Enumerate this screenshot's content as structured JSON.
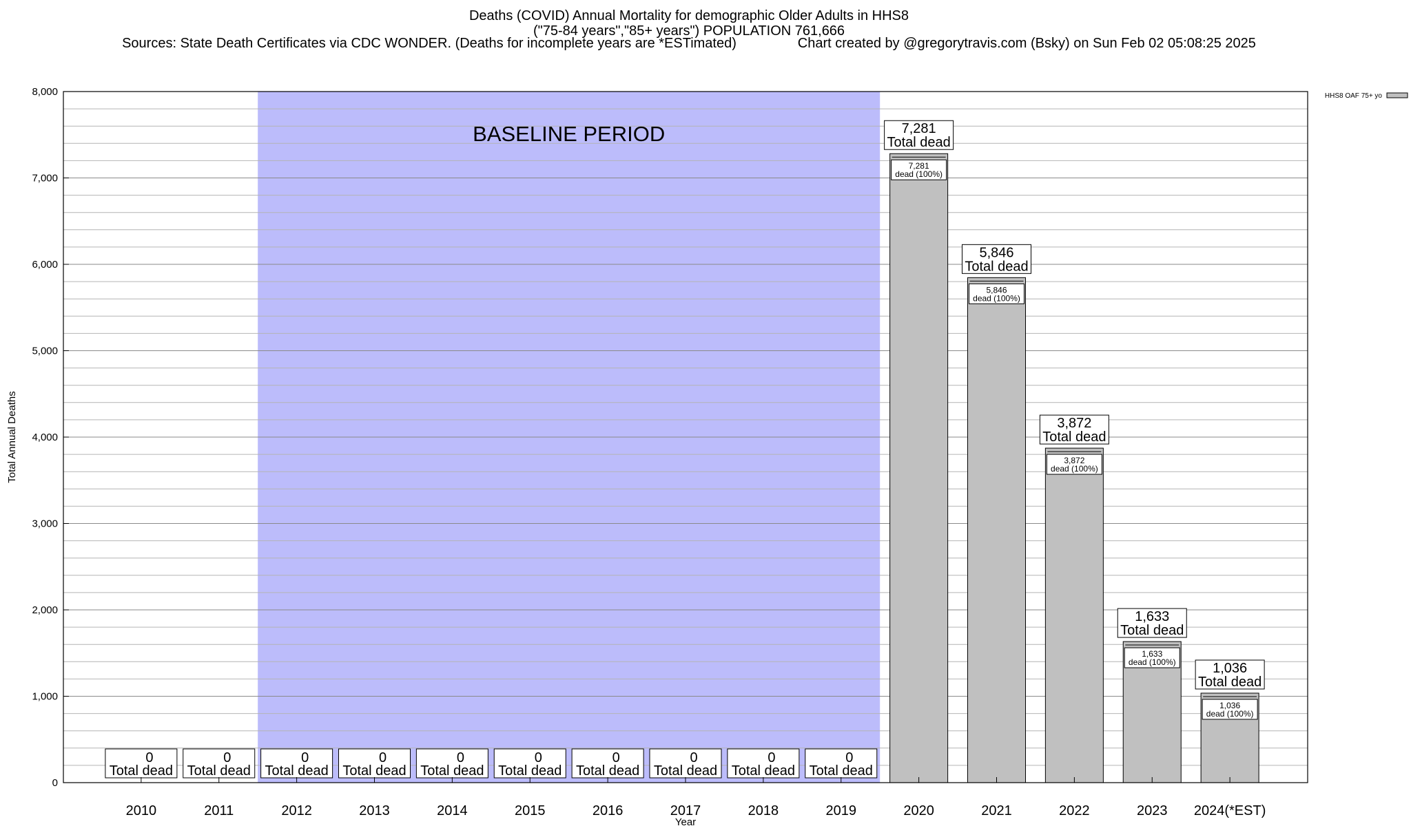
{
  "chart_data": {
    "type": "bar",
    "title": "Deaths (COVID) Annual Mortality for demographic Older Adults in HHS8",
    "title_line2": "(\"75-84 years\",\"85+ years\") POPULATION 761,666",
    "sources": "Sources: State Death Certificates via CDC WONDER. (Deaths for incomplete years are *ESTimated)",
    "credit": "Chart created by @gregorytravis.com (Bsky) on Sun Feb 02 05:08:25 2025",
    "xlabel": "Year",
    "ylabel": "Total Annual Deaths",
    "ylim": [
      0,
      8000
    ],
    "y_ticks": [
      0,
      1000,
      2000,
      3000,
      4000,
      5000,
      6000,
      7000,
      8000
    ],
    "y_tick_labels": [
      "0",
      "1,000",
      "2,000",
      "3,000",
      "4,000",
      "5,000",
      "6,000",
      "7,000",
      "8,000"
    ],
    "grid": true,
    "legend": {
      "label": "HHS8 OAF 75+ yo",
      "placement": "top-right"
    },
    "categories": [
      "2010",
      "2011",
      "2012",
      "2013",
      "2014",
      "2015",
      "2016",
      "2017",
      "2018",
      "2019",
      "2020",
      "2021",
      "2022",
      "2023",
      "2024(*EST)"
    ],
    "series": [
      {
        "name": "HHS8 OAF 75+ yo",
        "values": [
          0,
          0,
          0,
          0,
          0,
          0,
          0,
          0,
          0,
          0,
          7281,
          5846,
          3872,
          1633,
          1036
        ]
      }
    ],
    "total_labels": [
      "0",
      "0",
      "0",
      "0",
      "0",
      "0",
      "0",
      "0",
      "0",
      "0",
      "7,281",
      "5,846",
      "3,872",
      "1,633",
      "1,036"
    ],
    "total_caption": "Total dead",
    "inner_labels": [
      "",
      "",
      "",
      "",
      "",
      "",
      "",
      "",
      "",
      "",
      "7,281",
      "5,846",
      "3,872",
      "1,633",
      "1,036"
    ],
    "inner_caption": "dead (100%)",
    "baseline": {
      "label": "BASELINE PERIOD",
      "from": "2012",
      "to": "2019",
      "color": "#bcbcfb"
    },
    "bar_color": "#c0c0c0"
  }
}
